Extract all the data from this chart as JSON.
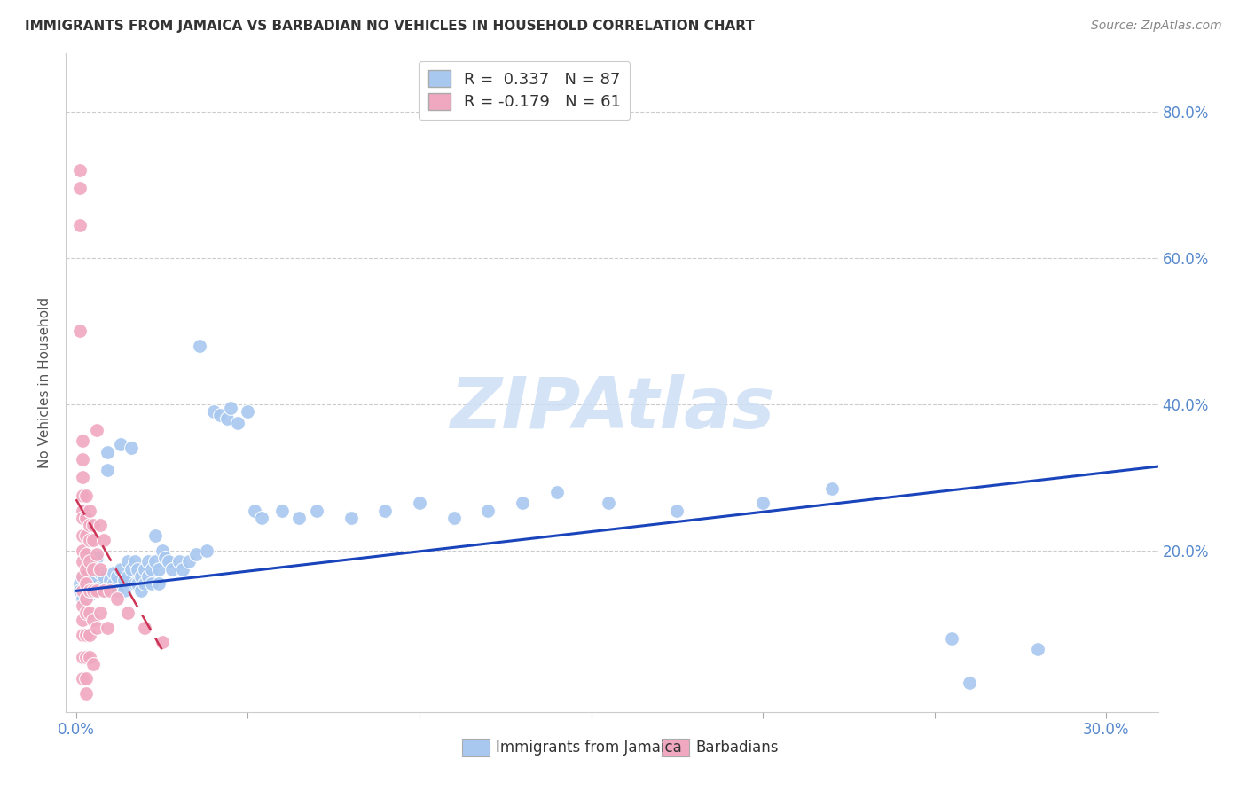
{
  "title": "IMMIGRANTS FROM JAMAICA VS BARBADIAN NO VEHICLES IN HOUSEHOLD CORRELATION CHART",
  "source": "Source: ZipAtlas.com",
  "ylabel": "No Vehicles in Household",
  "right_yticks": [
    "80.0%",
    "60.0%",
    "40.0%",
    "20.0%"
  ],
  "right_ytick_vals": [
    0.8,
    0.6,
    0.4,
    0.2
  ],
  "ylim": [
    -0.02,
    0.88
  ],
  "xlim": [
    -0.003,
    0.315
  ],
  "jamaica_color": "#a8c8f0",
  "barbadian_color": "#f0a8c0",
  "jamaica_line_color": "#1a44bb",
  "barbadian_line_color": "#cc3355",
  "background_color": "#ffffff",
  "grid_color": "#cccccc",
  "watermark": "ZIPAtlas",
  "jamaica_scatter": [
    [
      0.001,
      0.155
    ],
    [
      0.001,
      0.145
    ],
    [
      0.002,
      0.165
    ],
    [
      0.002,
      0.135
    ],
    [
      0.003,
      0.17
    ],
    [
      0.003,
      0.155
    ],
    [
      0.003,
      0.145
    ],
    [
      0.004,
      0.175
    ],
    [
      0.004,
      0.155
    ],
    [
      0.004,
      0.14
    ],
    [
      0.005,
      0.18
    ],
    [
      0.005,
      0.16
    ],
    [
      0.005,
      0.145
    ],
    [
      0.006,
      0.19
    ],
    [
      0.006,
      0.165
    ],
    [
      0.006,
      0.145
    ],
    [
      0.007,
      0.17
    ],
    [
      0.007,
      0.15
    ],
    [
      0.008,
      0.165
    ],
    [
      0.008,
      0.145
    ],
    [
      0.009,
      0.335
    ],
    [
      0.009,
      0.31
    ],
    [
      0.01,
      0.16
    ],
    [
      0.01,
      0.145
    ],
    [
      0.011,
      0.17
    ],
    [
      0.011,
      0.155
    ],
    [
      0.012,
      0.165
    ],
    [
      0.012,
      0.145
    ],
    [
      0.013,
      0.345
    ],
    [
      0.013,
      0.175
    ],
    [
      0.014,
      0.16
    ],
    [
      0.014,
      0.145
    ],
    [
      0.015,
      0.165
    ],
    [
      0.015,
      0.185
    ],
    [
      0.016,
      0.34
    ],
    [
      0.016,
      0.175
    ],
    [
      0.017,
      0.185
    ],
    [
      0.017,
      0.155
    ],
    [
      0.018,
      0.175
    ],
    [
      0.018,
      0.155
    ],
    [
      0.019,
      0.165
    ],
    [
      0.019,
      0.145
    ],
    [
      0.02,
      0.175
    ],
    [
      0.02,
      0.155
    ],
    [
      0.021,
      0.185
    ],
    [
      0.021,
      0.165
    ],
    [
      0.022,
      0.175
    ],
    [
      0.022,
      0.155
    ],
    [
      0.023,
      0.22
    ],
    [
      0.023,
      0.185
    ],
    [
      0.024,
      0.175
    ],
    [
      0.024,
      0.155
    ],
    [
      0.025,
      0.2
    ],
    [
      0.026,
      0.19
    ],
    [
      0.027,
      0.185
    ],
    [
      0.028,
      0.175
    ],
    [
      0.03,
      0.185
    ],
    [
      0.031,
      0.175
    ],
    [
      0.033,
      0.185
    ],
    [
      0.035,
      0.195
    ],
    [
      0.036,
      0.48
    ],
    [
      0.038,
      0.2
    ],
    [
      0.04,
      0.39
    ],
    [
      0.042,
      0.385
    ],
    [
      0.044,
      0.38
    ],
    [
      0.045,
      0.395
    ],
    [
      0.047,
      0.375
    ],
    [
      0.05,
      0.39
    ],
    [
      0.052,
      0.255
    ],
    [
      0.054,
      0.245
    ],
    [
      0.06,
      0.255
    ],
    [
      0.065,
      0.245
    ],
    [
      0.07,
      0.255
    ],
    [
      0.08,
      0.245
    ],
    [
      0.09,
      0.255
    ],
    [
      0.1,
      0.265
    ],
    [
      0.11,
      0.245
    ],
    [
      0.12,
      0.255
    ],
    [
      0.13,
      0.265
    ],
    [
      0.14,
      0.28
    ],
    [
      0.155,
      0.265
    ],
    [
      0.175,
      0.255
    ],
    [
      0.2,
      0.265
    ],
    [
      0.22,
      0.285
    ],
    [
      0.255,
      0.08
    ],
    [
      0.26,
      0.02
    ],
    [
      0.28,
      0.065
    ]
  ],
  "barbadian_scatter": [
    [
      0.001,
      0.72
    ],
    [
      0.001,
      0.695
    ],
    [
      0.001,
      0.645
    ],
    [
      0.001,
      0.5
    ],
    [
      0.002,
      0.35
    ],
    [
      0.002,
      0.325
    ],
    [
      0.002,
      0.3
    ],
    [
      0.002,
      0.275
    ],
    [
      0.002,
      0.255
    ],
    [
      0.002,
      0.245
    ],
    [
      0.002,
      0.22
    ],
    [
      0.002,
      0.2
    ],
    [
      0.002,
      0.185
    ],
    [
      0.002,
      0.165
    ],
    [
      0.002,
      0.145
    ],
    [
      0.002,
      0.125
    ],
    [
      0.002,
      0.105
    ],
    [
      0.002,
      0.085
    ],
    [
      0.002,
      0.055
    ],
    [
      0.002,
      0.025
    ],
    [
      0.003,
      0.275
    ],
    [
      0.003,
      0.245
    ],
    [
      0.003,
      0.22
    ],
    [
      0.003,
      0.195
    ],
    [
      0.003,
      0.175
    ],
    [
      0.003,
      0.155
    ],
    [
      0.003,
      0.135
    ],
    [
      0.003,
      0.115
    ],
    [
      0.003,
      0.085
    ],
    [
      0.003,
      0.055
    ],
    [
      0.003,
      0.025
    ],
    [
      0.003,
      0.005
    ],
    [
      0.004,
      0.255
    ],
    [
      0.004,
      0.235
    ],
    [
      0.004,
      0.215
    ],
    [
      0.004,
      0.185
    ],
    [
      0.004,
      0.145
    ],
    [
      0.004,
      0.115
    ],
    [
      0.004,
      0.085
    ],
    [
      0.004,
      0.055
    ],
    [
      0.005,
      0.235
    ],
    [
      0.005,
      0.215
    ],
    [
      0.005,
      0.175
    ],
    [
      0.005,
      0.145
    ],
    [
      0.005,
      0.105
    ],
    [
      0.005,
      0.045
    ],
    [
      0.006,
      0.365
    ],
    [
      0.006,
      0.195
    ],
    [
      0.006,
      0.145
    ],
    [
      0.006,
      0.095
    ],
    [
      0.007,
      0.235
    ],
    [
      0.007,
      0.175
    ],
    [
      0.007,
      0.115
    ],
    [
      0.008,
      0.215
    ],
    [
      0.008,
      0.145
    ],
    [
      0.009,
      0.095
    ],
    [
      0.01,
      0.145
    ],
    [
      0.012,
      0.135
    ],
    [
      0.015,
      0.115
    ],
    [
      0.02,
      0.095
    ],
    [
      0.025,
      0.075
    ]
  ],
  "jamaica_line_x": [
    0.0,
    0.315
  ],
  "jamaica_line_y": [
    0.145,
    0.315
  ],
  "barbadian_line_x": [
    0.0,
    0.025
  ],
  "barbadian_line_y": [
    0.27,
    0.065
  ]
}
